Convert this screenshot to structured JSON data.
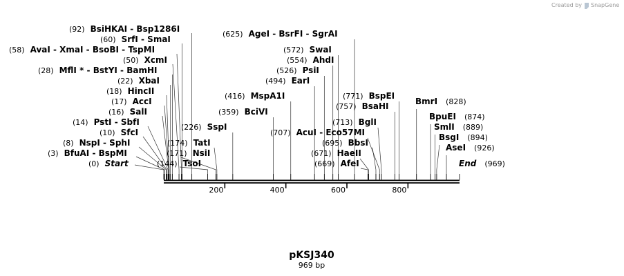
{
  "map": {
    "name": "pKSJ340",
    "length_label": "969 bp",
    "length": 969,
    "credit": "Created by",
    "brand": "SnapGene",
    "axis_ticks": [
      200,
      400,
      600,
      800
    ],
    "labels": [
      {
        "id": "bsihkai",
        "pos": "(92)",
        "parts": [
          {
            "t": "BsiHKAI"
          },
          {
            "t": "Bsp1286I"
          }
        ],
        "bp": 92
      },
      {
        "id": "srfi",
        "pos": "(60)",
        "parts": [
          {
            "t": "SrfI"
          },
          {
            "t": "SmaI"
          }
        ],
        "bp": 60
      },
      {
        "id": "avai",
        "pos": "(58)",
        "parts": [
          {
            "t": "AvaI"
          },
          {
            "t": "XmaI"
          },
          {
            "t": "BsoBI"
          },
          {
            "t": "TspMI"
          }
        ],
        "bp": 58
      },
      {
        "id": "xcmi",
        "pos": "(50)",
        "parts": [
          {
            "t": "XcmI"
          }
        ],
        "bp": 50
      },
      {
        "id": "mfli",
        "pos": "(28)",
        "parts": [
          {
            "t": "MflI *"
          },
          {
            "t": "BstYI"
          },
          {
            "t": "BamHI"
          }
        ],
        "bp": 28
      },
      {
        "id": "xbai",
        "pos": "(22)",
        "parts": [
          {
            "t": "XbaI"
          }
        ],
        "bp": 22
      },
      {
        "id": "hincii",
        "pos": "(18)",
        "parts": [
          {
            "t": "HincII"
          }
        ],
        "bp": 18
      },
      {
        "id": "acci",
        "pos": "(17)",
        "parts": [
          {
            "t": "AccI"
          }
        ],
        "bp": 17
      },
      {
        "id": "sali",
        "pos": "(16)",
        "parts": [
          {
            "t": "SalI"
          }
        ],
        "bp": 16
      },
      {
        "id": "psti",
        "pos": "(14)",
        "parts": [
          {
            "t": "PstI"
          },
          {
            "t": "SbfI"
          }
        ],
        "bp": 14
      },
      {
        "id": "sfci",
        "pos": "(10)",
        "parts": [
          {
            "t": "SfcI"
          }
        ],
        "bp": 10
      },
      {
        "id": "nspi",
        "pos": "(8)",
        "parts": [
          {
            "t": "NspI"
          },
          {
            "t": "SphI"
          }
        ],
        "bp": 8
      },
      {
        "id": "bfuai",
        "pos": "(3)",
        "parts": [
          {
            "t": "BfuAI"
          },
          {
            "t": "BspMI"
          }
        ],
        "bp": 3
      },
      {
        "id": "start",
        "pos": "(0)",
        "parts": [
          {
            "t": "Start",
            "italic": true
          }
        ],
        "bp": 0
      },
      {
        "id": "tsoi",
        "pos": "(144)",
        "parts": [
          {
            "t": "TsoI"
          }
        ],
        "bp": 144
      },
      {
        "id": "nsii",
        "pos": "(171)",
        "parts": [
          {
            "t": "NsiI"
          }
        ],
        "bp": 171
      },
      {
        "id": "tati",
        "pos": "(174)",
        "parts": [
          {
            "t": "TatI"
          }
        ],
        "bp": 174
      },
      {
        "id": "sspi",
        "pos": "(226)",
        "parts": [
          {
            "t": "SspI"
          }
        ],
        "bp": 226
      },
      {
        "id": "bcivi",
        "pos": "(359)",
        "parts": [
          {
            "t": "BciVI"
          }
        ],
        "bp": 359
      },
      {
        "id": "mspa1i",
        "pos": "(416)",
        "parts": [
          {
            "t": "MspA1I"
          }
        ],
        "bp": 416
      },
      {
        "id": "eari",
        "pos": "(494)",
        "parts": [
          {
            "t": "EarI"
          }
        ],
        "bp": 494
      },
      {
        "id": "psii",
        "pos": "(526)",
        "parts": [
          {
            "t": "PsiI"
          }
        ],
        "bp": 526
      },
      {
        "id": "ahdi",
        "pos": "(554)",
        "parts": [
          {
            "t": "AhdI"
          }
        ],
        "bp": 554
      },
      {
        "id": "swai",
        "pos": "(572)",
        "parts": [
          {
            "t": "SwaI"
          }
        ],
        "bp": 572
      },
      {
        "id": "agei",
        "pos": "(625)",
        "parts": [
          {
            "t": "AgeI"
          },
          {
            "t": "BsrFI"
          },
          {
            "t": "SgrAI"
          }
        ],
        "bp": 625
      },
      {
        "id": "acui",
        "pos": "(707)",
        "parts": [
          {
            "t": "AcuI"
          },
          {
            "t": "Eco57MI"
          }
        ],
        "bp": 707
      },
      {
        "id": "haeii",
        "pos": "(671)",
        "parts": [
          {
            "t": "HaeII"
          }
        ],
        "bp": 671
      },
      {
        "id": "afei",
        "pos": "(669)",
        "parts": [
          {
            "t": "AfeI"
          }
        ],
        "bp": 669
      },
      {
        "id": "bbsi",
        "pos": "(695)",
        "parts": [
          {
            "t": "BbsI"
          }
        ],
        "bp": 695
      },
      {
        "id": "bgli",
        "pos": "(713)",
        "parts": [
          {
            "t": "BglI"
          }
        ],
        "bp": 713
      },
      {
        "id": "bsahi",
        "pos": "(757)",
        "parts": [
          {
            "t": "BsaHI"
          }
        ],
        "bp": 757
      },
      {
        "id": "bspei",
        "pos": "(771)",
        "parts": [
          {
            "t": "BspEI"
          }
        ],
        "bp": 771
      },
      {
        "id": "bmri",
        "pos": "(828)",
        "parts": [
          {
            "t": "BmrI"
          }
        ],
        "bp": 828
      },
      {
        "id": "bpuei",
        "pos": "(874)",
        "parts": [
          {
            "t": "BpuEI"
          }
        ],
        "bp": 874
      },
      {
        "id": "smli",
        "pos": "(889)",
        "parts": [
          {
            "t": "SmlI"
          }
        ],
        "bp": 889
      },
      {
        "id": "bsgi",
        "pos": "(894)",
        "parts": [
          {
            "t": "BsgI"
          }
        ],
        "bp": 894
      },
      {
        "id": "asei",
        "pos": "(926)",
        "parts": [
          {
            "t": "AseI"
          }
        ],
        "bp": 926
      },
      {
        "id": "end",
        "pos": "(969)",
        "parts": [
          {
            "t": "End",
            "italic": true
          }
        ],
        "bp": 969
      }
    ]
  }
}
